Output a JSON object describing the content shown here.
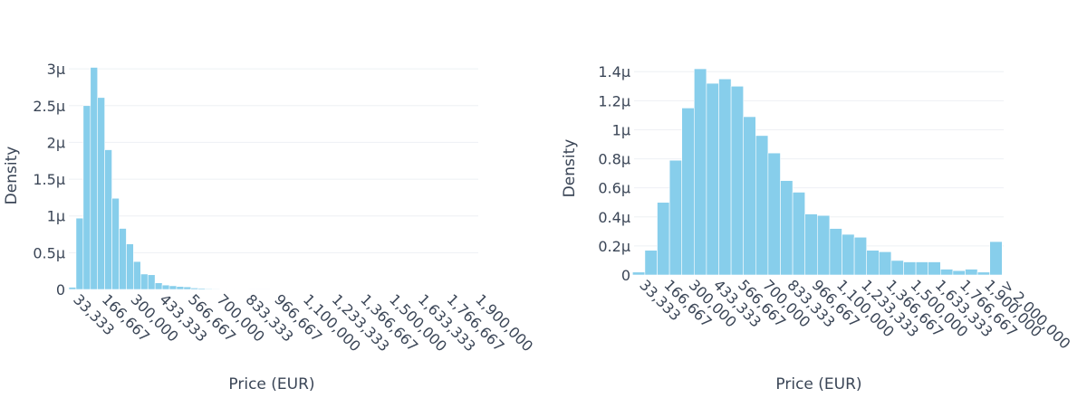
{
  "style": {
    "bar_color": "#87CEEB",
    "bar_edge": "#ffffff",
    "text_color": "#3a4556",
    "grid_color": "#eef0f4"
  },
  "chart_data": [
    {
      "type": "bar",
      "xlabel": "Price (EUR)",
      "ylabel": "Density",
      "grid": "horizontal",
      "bin_width": 33333.3,
      "x_range": [
        16667,
        1916667
      ],
      "y_range": [
        0,
        3.1e-06
      ],
      "x_ticks": [
        {
          "value": 33333,
          "label": "33,333"
        },
        {
          "value": 166667,
          "label": "166,667"
        },
        {
          "value": 300000,
          "label": "300,000"
        },
        {
          "value": 433333,
          "label": "433,333"
        },
        {
          "value": 566667,
          "label": "566,667"
        },
        {
          "value": 700000,
          "label": "700,000"
        },
        {
          "value": 833333,
          "label": "833,333"
        },
        {
          "value": 966667,
          "label": "966,667"
        },
        {
          "value": 1100000,
          "label": "1,100,000"
        },
        {
          "value": 1233333,
          "label": "1,233,333"
        },
        {
          "value": 1366667,
          "label": "1,366,667"
        },
        {
          "value": 1500000,
          "label": "1,500,000"
        },
        {
          "value": 1633333,
          "label": "1,633,333"
        },
        {
          "value": 1766667,
          "label": "1,766,667"
        },
        {
          "value": 1900000,
          "label": "1,900,000"
        }
      ],
      "y_ticks": [
        {
          "value": 0,
          "label": "0"
        },
        {
          "value": 5e-07,
          "label": "0.5μ"
        },
        {
          "value": 1e-06,
          "label": "1μ"
        },
        {
          "value": 1.5e-06,
          "label": "1.5μ"
        },
        {
          "value": 2e-06,
          "label": "2μ"
        },
        {
          "value": 2.5e-06,
          "label": "2.5μ"
        },
        {
          "value": 3e-06,
          "label": "3μ"
        }
      ],
      "bins": [
        {
          "x": 33333,
          "y": 3e-08
        },
        {
          "x": 66667,
          "y": 9.7e-07
        },
        {
          "x": 100000,
          "y": 2.5e-06
        },
        {
          "x": 133333,
          "y": 3.02e-06
        },
        {
          "x": 166667,
          "y": 2.61e-06
        },
        {
          "x": 200000,
          "y": 1.9e-06
        },
        {
          "x": 233333,
          "y": 1.24e-06
        },
        {
          "x": 266667,
          "y": 8.3e-07
        },
        {
          "x": 300000,
          "y": 6.2e-07
        },
        {
          "x": 333333,
          "y": 3.8e-07
        },
        {
          "x": 366667,
          "y": 2.1e-07
        },
        {
          "x": 400000,
          "y": 2e-07
        },
        {
          "x": 433333,
          "y": 9e-08
        },
        {
          "x": 466667,
          "y": 6e-08
        },
        {
          "x": 500000,
          "y": 5e-08
        },
        {
          "x": 533333,
          "y": 4e-08
        },
        {
          "x": 566667,
          "y": 3.5e-08
        },
        {
          "x": 600000,
          "y": 2e-08
        },
        {
          "x": 633333,
          "y": 1.5e-08
        },
        {
          "x": 666667,
          "y": 1e-08
        },
        {
          "x": 700000,
          "y": 8e-09
        },
        {
          "x": 733333,
          "y": 6e-09
        },
        {
          "x": 766667,
          "y": 5e-09
        },
        {
          "x": 800000,
          "y": 4e-09
        },
        {
          "x": 833333,
          "y": 3e-09
        },
        {
          "x": 866667,
          "y": 2e-09
        },
        {
          "x": 900000,
          "y": 2e-09
        },
        {
          "x": 933333,
          "y": 1e-09
        }
      ]
    },
    {
      "type": "bar",
      "xlabel": "Price (EUR)",
      "ylabel": "Density",
      "grid": "horizontal",
      "bin_width": 66667,
      "x_range": [
        8333,
        2008333
      ],
      "y_range": [
        0,
        1.47e-06
      ],
      "x_ticks": [
        {
          "value": 33333,
          "label": "33,333"
        },
        {
          "value": 166667,
          "label": "166,667"
        },
        {
          "value": 300000,
          "label": "300,000"
        },
        {
          "value": 433333,
          "label": "433,333"
        },
        {
          "value": 566667,
          "label": "566,667"
        },
        {
          "value": 700000,
          "label": "700,000"
        },
        {
          "value": 833333,
          "label": "833,333"
        },
        {
          "value": 966667,
          "label": "966,667"
        },
        {
          "value": 1100000,
          "label": "1,100,000"
        },
        {
          "value": 1233333,
          "label": "1,233,333"
        },
        {
          "value": 1366667,
          "label": "1,366,667"
        },
        {
          "value": 1500000,
          "label": "1,500,000"
        },
        {
          "value": 1633333,
          "label": "1,633,333"
        },
        {
          "value": 1766667,
          "label": "1,766,667"
        },
        {
          "value": 1900000,
          "label": "1,900,000"
        },
        {
          "value": 1990000,
          "label": "> 2,000,000"
        }
      ],
      "y_ticks": [
        {
          "value": 0,
          "label": "0"
        },
        {
          "value": 2e-07,
          "label": "0.2μ"
        },
        {
          "value": 4e-07,
          "label": "0.4μ"
        },
        {
          "value": 6e-07,
          "label": "0.6μ"
        },
        {
          "value": 8e-07,
          "label": "0.8μ"
        },
        {
          "value": 1e-06,
          "label": "1μ"
        },
        {
          "value": 1.2e-06,
          "label": "1.2μ"
        },
        {
          "value": 1.4e-06,
          "label": "1.4μ"
        }
      ],
      "bins": [
        {
          "x": 33333,
          "y": 2e-08
        },
        {
          "x": 100000,
          "y": 1.7e-07
        },
        {
          "x": 166667,
          "y": 5e-07
        },
        {
          "x": 233333,
          "y": 7.9e-07
        },
        {
          "x": 300000,
          "y": 1.15e-06
        },
        {
          "x": 366667,
          "y": 1.42e-06
        },
        {
          "x": 433333,
          "y": 1.32e-06
        },
        {
          "x": 500000,
          "y": 1.35e-06
        },
        {
          "x": 566667,
          "y": 1.3e-06
        },
        {
          "x": 633333,
          "y": 1.09e-06
        },
        {
          "x": 700000,
          "y": 9.6e-07
        },
        {
          "x": 766667,
          "y": 8.4e-07
        },
        {
          "x": 833333,
          "y": 6.5e-07
        },
        {
          "x": 900000,
          "y": 5.7e-07
        },
        {
          "x": 966667,
          "y": 4.2e-07
        },
        {
          "x": 1033333,
          "y": 4.1e-07
        },
        {
          "x": 1100000,
          "y": 3.2e-07
        },
        {
          "x": 1166667,
          "y": 2.8e-07
        },
        {
          "x": 1233333,
          "y": 2.6e-07
        },
        {
          "x": 1300000,
          "y": 1.7e-07
        },
        {
          "x": 1366667,
          "y": 1.6e-07
        },
        {
          "x": 1433333,
          "y": 1e-07
        },
        {
          "x": 1500000,
          "y": 9e-08
        },
        {
          "x": 1566667,
          "y": 9e-08
        },
        {
          "x": 1633333,
          "y": 9e-08
        },
        {
          "x": 1700000,
          "y": 4e-08
        },
        {
          "x": 1766667,
          "y": 3e-08
        },
        {
          "x": 1833333,
          "y": 4e-08
        },
        {
          "x": 1900000,
          "y": 2e-08
        },
        {
          "x": 1966667,
          "y": 2.3e-07
        }
      ]
    }
  ]
}
